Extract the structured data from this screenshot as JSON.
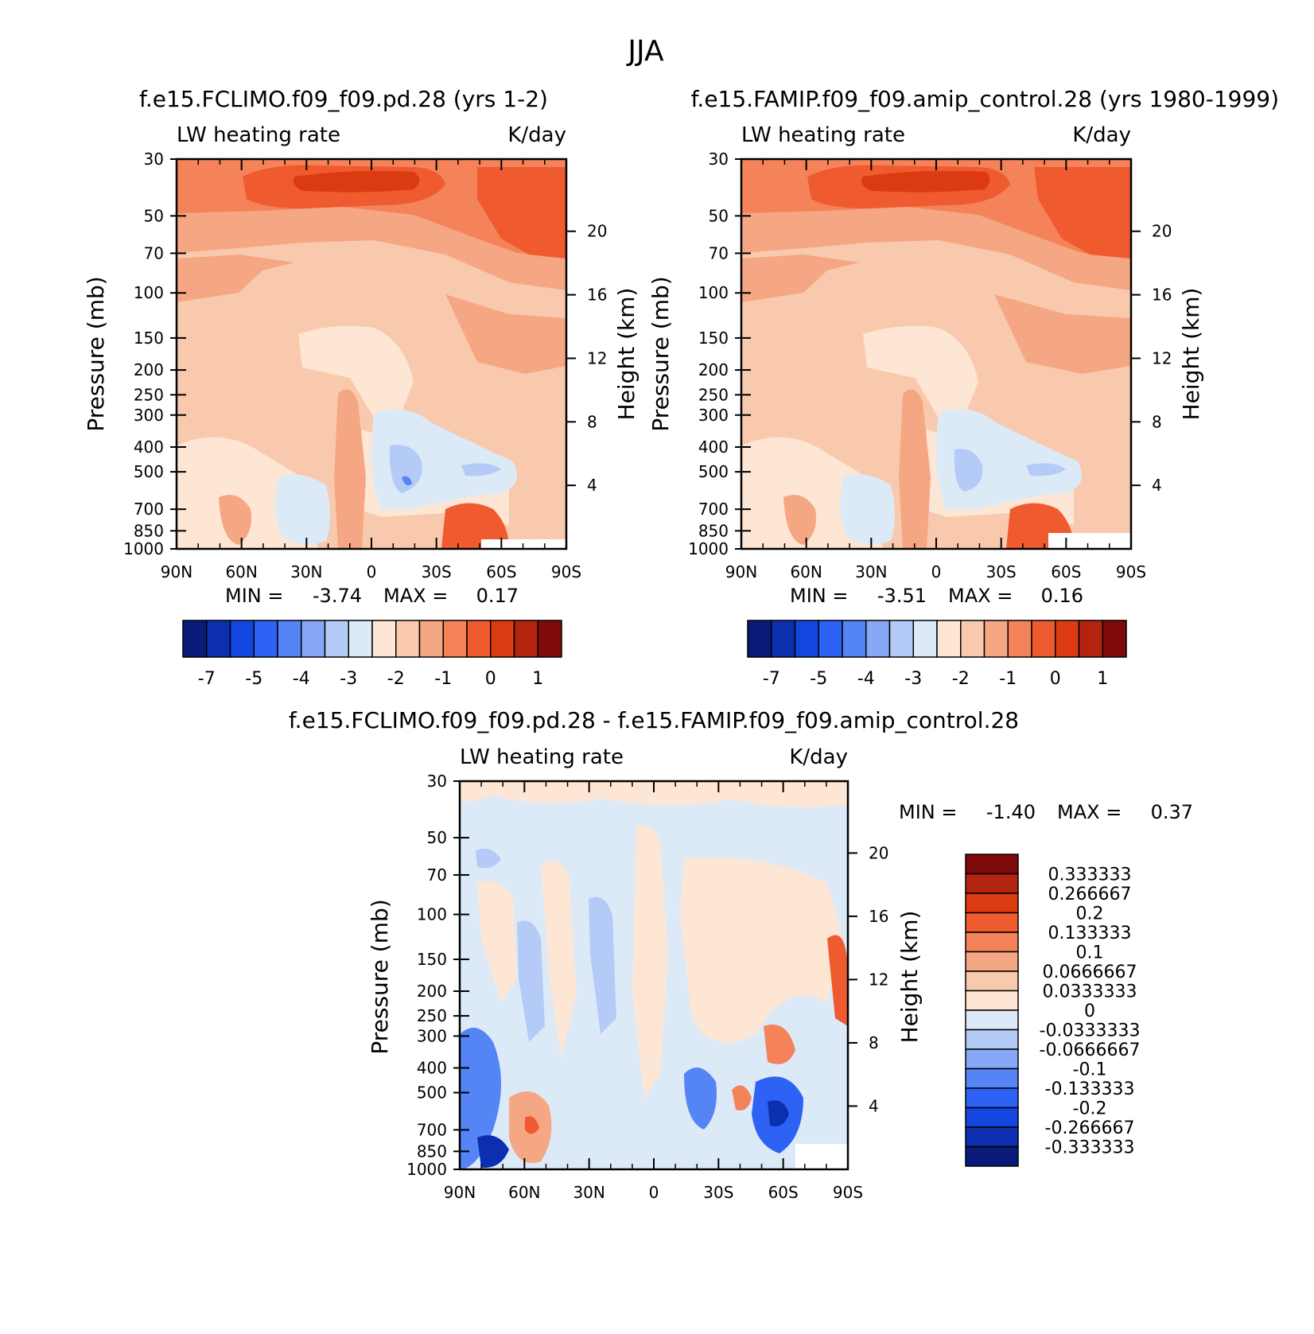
{
  "figure": {
    "title": "JJA",
    "colors": {
      "frame": "#000000",
      "background": "#ffffff"
    }
  },
  "chart_data": [
    {
      "type": "heatmap",
      "title": "f.e15.FCLIMO.f09_f09.pd.28 (yrs 1-2)",
      "left_label": "LW heating rate",
      "right_label": "K/day",
      "ylabel": "Pressure (mb)",
      "ylabel_right": "Height (km)",
      "x_ticks": [
        "90N",
        "60N",
        "30N",
        "0",
        "30S",
        "60S",
        "90S"
      ],
      "xlim": [
        90,
        -90
      ],
      "y_ticks": [
        "30",
        "50",
        "70",
        "100",
        "150",
        "200",
        "250",
        "300",
        "400",
        "500",
        "700",
        "850",
        "1000"
      ],
      "ylim": [
        1000,
        30
      ],
      "height_ticks": [
        "20",
        "16",
        "12",
        "8",
        "4"
      ],
      "stats": {
        "min_label": "MIN =",
        "min": "-3.74",
        "max_label": "MAX =",
        "max": "0.17"
      },
      "colorbar_ticks": [
        "-7",
        "-5",
        "-4",
        "-3",
        "-2",
        "-1",
        "0",
        "1"
      ]
    },
    {
      "type": "heatmap",
      "title": "f.e15.FAMIP.f09_f09.amip_control.28 (yrs 1980-1999)",
      "left_label": "LW heating rate",
      "right_label": "K/day",
      "ylabel": "Pressure (mb)",
      "ylabel_right": "Height (km)",
      "x_ticks": [
        "90N",
        "60N",
        "30N",
        "0",
        "30S",
        "60S",
        "90S"
      ],
      "xlim": [
        90,
        -90
      ],
      "y_ticks": [
        "30",
        "50",
        "70",
        "100",
        "150",
        "200",
        "250",
        "300",
        "400",
        "500",
        "700",
        "850",
        "1000"
      ],
      "ylim": [
        1000,
        30
      ],
      "height_ticks": [
        "20",
        "16",
        "12",
        "8",
        "4"
      ],
      "stats": {
        "min_label": "MIN =",
        "min": "-3.51",
        "max_label": "MAX =",
        "max": "0.16"
      },
      "colorbar_ticks": [
        "-7",
        "-5",
        "-4",
        "-3",
        "-2",
        "-1",
        "0",
        "1"
      ]
    },
    {
      "type": "heatmap",
      "title": "f.e15.FCLIMO.f09_f09.pd.28 - f.e15.FAMIP.f09_f09.amip_control.28",
      "left_label": "LW heating rate",
      "right_label": "K/day",
      "ylabel": "Pressure (mb)",
      "ylabel_right": "Height (km)",
      "x_ticks": [
        "90N",
        "60N",
        "30N",
        "0",
        "30S",
        "60S",
        "90S"
      ],
      "xlim": [
        90,
        -90
      ],
      "y_ticks": [
        "30",
        "50",
        "70",
        "100",
        "150",
        "200",
        "250",
        "300",
        "400",
        "500",
        "700",
        "850",
        "1000"
      ],
      "ylim": [
        1000,
        30
      ],
      "height_ticks": [
        "20",
        "16",
        "12",
        "8",
        "4"
      ],
      "stats": {
        "min_label": "MIN =",
        "min": "-1.40",
        "max_label": "MAX =",
        "max": "0.37"
      },
      "colorbar_ticks": [
        "0.333333",
        "0.266667",
        "0.2",
        "0.133333",
        "0.1",
        "0.0666667",
        "0.0333333",
        "0",
        "-0.0333333",
        "-0.0666667",
        "-0.1",
        "-0.133333",
        "-0.2",
        "-0.266667",
        "-0.333333"
      ]
    }
  ],
  "palette": [
    "#0a1a78",
    "#0c2fb0",
    "#1446e0",
    "#2d62f5",
    "#5584f5",
    "#86a8f5",
    "#b5cbf7",
    "#dceaf8",
    "#fde6d3",
    "#f9c9ae",
    "#f5a683",
    "#f4835a",
    "#f05a2f",
    "#dc3b12",
    "#b22310",
    "#7e0a0a"
  ]
}
